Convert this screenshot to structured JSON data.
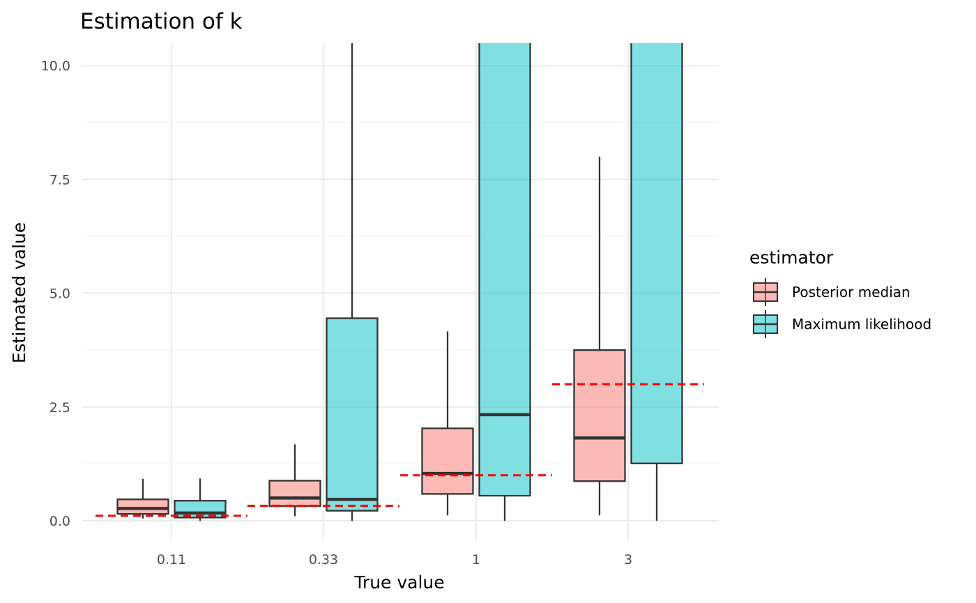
{
  "chart_data": {
    "type": "boxplot",
    "title": "Estimation of k",
    "xlabel": "True value",
    "ylabel": "Estimated value",
    "categories": [
      "0.11",
      "0.33",
      "1",
      "3"
    ],
    "true_values": [
      0.11,
      0.33,
      1,
      3
    ],
    "ylim": [
      -0.4,
      10.5
    ],
    "yticks": [
      0.0,
      2.5,
      5.0,
      7.5,
      10.0
    ],
    "ytick_labels": [
      "0.0",
      "2.5",
      "5.0",
      "7.5",
      "10.0"
    ],
    "grid": true,
    "legend": {
      "title": "estimator",
      "position": "right"
    },
    "series": [
      {
        "name": "Posterior median",
        "color": "#F8766D",
        "boxes": [
          {
            "lower": 0.05,
            "q1": 0.15,
            "median": 0.27,
            "q3": 0.47,
            "upper": 0.92
          },
          {
            "lower": 0.1,
            "q1": 0.32,
            "median": 0.5,
            "q3": 0.88,
            "upper": 1.68
          },
          {
            "lower": 0.12,
            "q1": 0.59,
            "median": 1.04,
            "q3": 2.03,
            "upper": 4.16
          },
          {
            "lower": 0.12,
            "q1": 0.87,
            "median": 1.82,
            "q3": 3.75,
            "upper": 8.0
          }
        ]
      },
      {
        "name": "Maximum likelihood",
        "color": "#00BFC4",
        "boxes": [
          {
            "lower": 0.0,
            "q1": 0.07,
            "median": 0.17,
            "q3": 0.44,
            "upper": 0.93
          },
          {
            "lower": 0.0,
            "q1": 0.22,
            "median": 0.47,
            "q3": 4.45,
            "upper": 11.0
          },
          {
            "lower": 0.0,
            "q1": 0.55,
            "median": 2.33,
            "q3": 11.0,
            "upper": 11.0
          },
          {
            "lower": 0.0,
            "q1": 1.26,
            "median": 11.0,
            "q3": 11.0,
            "upper": 11.0
          }
        ]
      }
    ],
    "reference_line_color": "#FF0000"
  }
}
